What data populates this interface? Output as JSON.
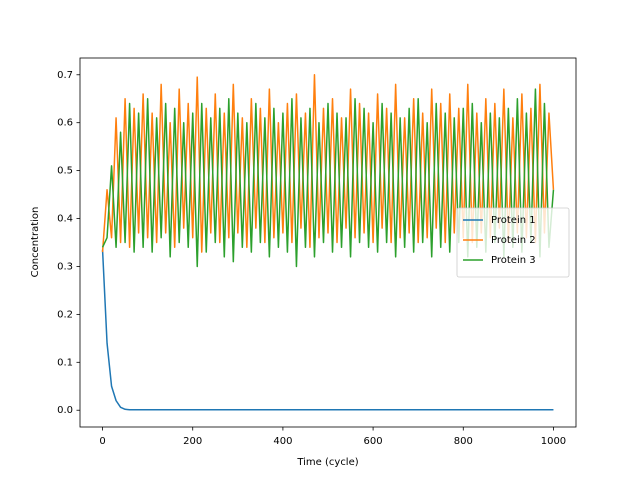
{
  "chart_data": {
    "type": "line",
    "x_label": "Time (cycle)",
    "y_label": "Concentration",
    "x": [
      0,
      10,
      20,
      30,
      40,
      50,
      60,
      70,
      80,
      90,
      100,
      110,
      120,
      130,
      140,
      150,
      160,
      170,
      180,
      190,
      200,
      210,
      220,
      230,
      240,
      250,
      260,
      270,
      280,
      290,
      300,
      310,
      320,
      330,
      340,
      350,
      360,
      370,
      380,
      390,
      400,
      410,
      420,
      430,
      440,
      450,
      460,
      470,
      480,
      490,
      500,
      510,
      520,
      530,
      540,
      550,
      560,
      570,
      580,
      590,
      600,
      610,
      620,
      630,
      640,
      650,
      660,
      670,
      680,
      690,
      700,
      710,
      720,
      730,
      740,
      750,
      760,
      770,
      780,
      790,
      800,
      810,
      820,
      830,
      840,
      850,
      860,
      870,
      880,
      890,
      900,
      910,
      920,
      930,
      940,
      950,
      960,
      970,
      980,
      990,
      1000
    ],
    "series": [
      {
        "name": "Protein 1",
        "color": "#1f77b4",
        "values": [
          0.335,
          0.14,
          0.05,
          0.02,
          0.006,
          0.002,
          0.001,
          0.001,
          0.001,
          0.001,
          0.001,
          0.001,
          0.001,
          0.001,
          0.001,
          0.001,
          0.001,
          0.001,
          0.001,
          0.001,
          0.001,
          0.001,
          0.001,
          0.001,
          0.001,
          0.001,
          0.001,
          0.001,
          0.001,
          0.001,
          0.001,
          0.001,
          0.001,
          0.001,
          0.001,
          0.001,
          0.001,
          0.001,
          0.001,
          0.001,
          0.001,
          0.001,
          0.001,
          0.001,
          0.001,
          0.001,
          0.001,
          0.001,
          0.001,
          0.001,
          0.001,
          0.001,
          0.001,
          0.001,
          0.001,
          0.001,
          0.001,
          0.001,
          0.001,
          0.001,
          0.001,
          0.001,
          0.001,
          0.001,
          0.001,
          0.001,
          0.001,
          0.001,
          0.001,
          0.001,
          0.001,
          0.001,
          0.001,
          0.001,
          0.001,
          0.001,
          0.001,
          0.001,
          0.001,
          0.001,
          0.001,
          0.001,
          0.001,
          0.001,
          0.001,
          0.001,
          0.001,
          0.001,
          0.001,
          0.001,
          0.001,
          0.001,
          0.001,
          0.001,
          0.001,
          0.001,
          0.001,
          0.001,
          0.001,
          0.001,
          0.001
        ]
      },
      {
        "name": "Protein 2",
        "color": "#ff7f0e",
        "values": [
          0.33,
          0.46,
          0.36,
          0.61,
          0.35,
          0.65,
          0.34,
          0.63,
          0.37,
          0.66,
          0.36,
          0.62,
          0.35,
          0.68,
          0.37,
          0.6,
          0.34,
          0.67,
          0.38,
          0.64,
          0.36,
          0.695,
          0.33,
          0.63,
          0.37,
          0.66,
          0.35,
          0.62,
          0.36,
          0.68,
          0.37,
          0.61,
          0.34,
          0.65,
          0.38,
          0.63,
          0.35,
          0.67,
          0.36,
          0.6,
          0.37,
          0.64,
          0.35,
          0.66,
          0.38,
          0.62,
          0.34,
          0.7,
          0.36,
          0.63,
          0.37,
          0.65,
          0.35,
          0.61,
          0.38,
          0.67,
          0.36,
          0.64,
          0.37,
          0.62,
          0.35,
          0.66,
          0.38,
          0.63,
          0.35,
          0.68,
          0.36,
          0.61,
          0.37,
          0.65,
          0.35,
          0.62,
          0.36,
          0.67,
          0.38,
          0.64,
          0.35,
          0.66,
          0.37,
          0.63,
          0.36,
          0.68,
          0.35,
          0.62,
          0.37,
          0.65,
          0.36,
          0.64,
          0.38,
          0.67,
          0.35,
          0.61,
          0.37,
          0.66,
          0.36,
          0.63,
          0.35,
          0.68,
          0.37,
          0.62,
          0.46
        ]
      },
      {
        "name": "Protein 3",
        "color": "#2ca02c",
        "values": [
          0.34,
          0.36,
          0.51,
          0.34,
          0.58,
          0.35,
          0.64,
          0.33,
          0.62,
          0.34,
          0.65,
          0.33,
          0.61,
          0.36,
          0.64,
          0.32,
          0.63,
          0.35,
          0.6,
          0.34,
          0.62,
          0.3,
          0.64,
          0.33,
          0.61,
          0.35,
          0.63,
          0.32,
          0.65,
          0.31,
          0.62,
          0.34,
          0.6,
          0.33,
          0.64,
          0.35,
          0.61,
          0.32,
          0.63,
          0.34,
          0.62,
          0.33,
          0.65,
          0.3,
          0.61,
          0.34,
          0.63,
          0.32,
          0.6,
          0.35,
          0.64,
          0.33,
          0.62,
          0.34,
          0.61,
          0.32,
          0.65,
          0.35,
          0.63,
          0.34,
          0.6,
          0.33,
          0.64,
          0.35,
          0.62,
          0.32,
          0.61,
          0.34,
          0.63,
          0.33,
          0.65,
          0.35,
          0.6,
          0.32,
          0.64,
          0.34,
          0.62,
          0.33,
          0.61,
          0.35,
          0.63,
          0.32,
          0.64,
          0.34,
          0.6,
          0.33,
          0.62,
          0.35,
          0.61,
          0.32,
          0.63,
          0.34,
          0.65,
          0.33,
          0.62,
          0.35,
          0.67,
          0.32,
          0.64,
          0.34,
          0.46
        ]
      }
    ],
    "xlim": [
      -50,
      1050
    ],
    "ylim": [
      -0.035,
      0.735
    ],
    "xticks": [
      0,
      200,
      400,
      600,
      800,
      1000
    ],
    "yticks": [
      {
        "value": 0,
        "label": "0.0"
      },
      {
        "value": 0.1,
        "label": "0.1"
      },
      {
        "value": 0.2,
        "label": "0.2"
      },
      {
        "value": 0.3,
        "label": "0.3"
      },
      {
        "value": 0.4,
        "label": "0.4"
      },
      {
        "value": 0.5,
        "label": "0.5"
      },
      {
        "value": 0.6,
        "label": "0.6"
      },
      {
        "value": 0.7,
        "label": "0.7"
      }
    ],
    "legend": "center right",
    "grid": false
  }
}
